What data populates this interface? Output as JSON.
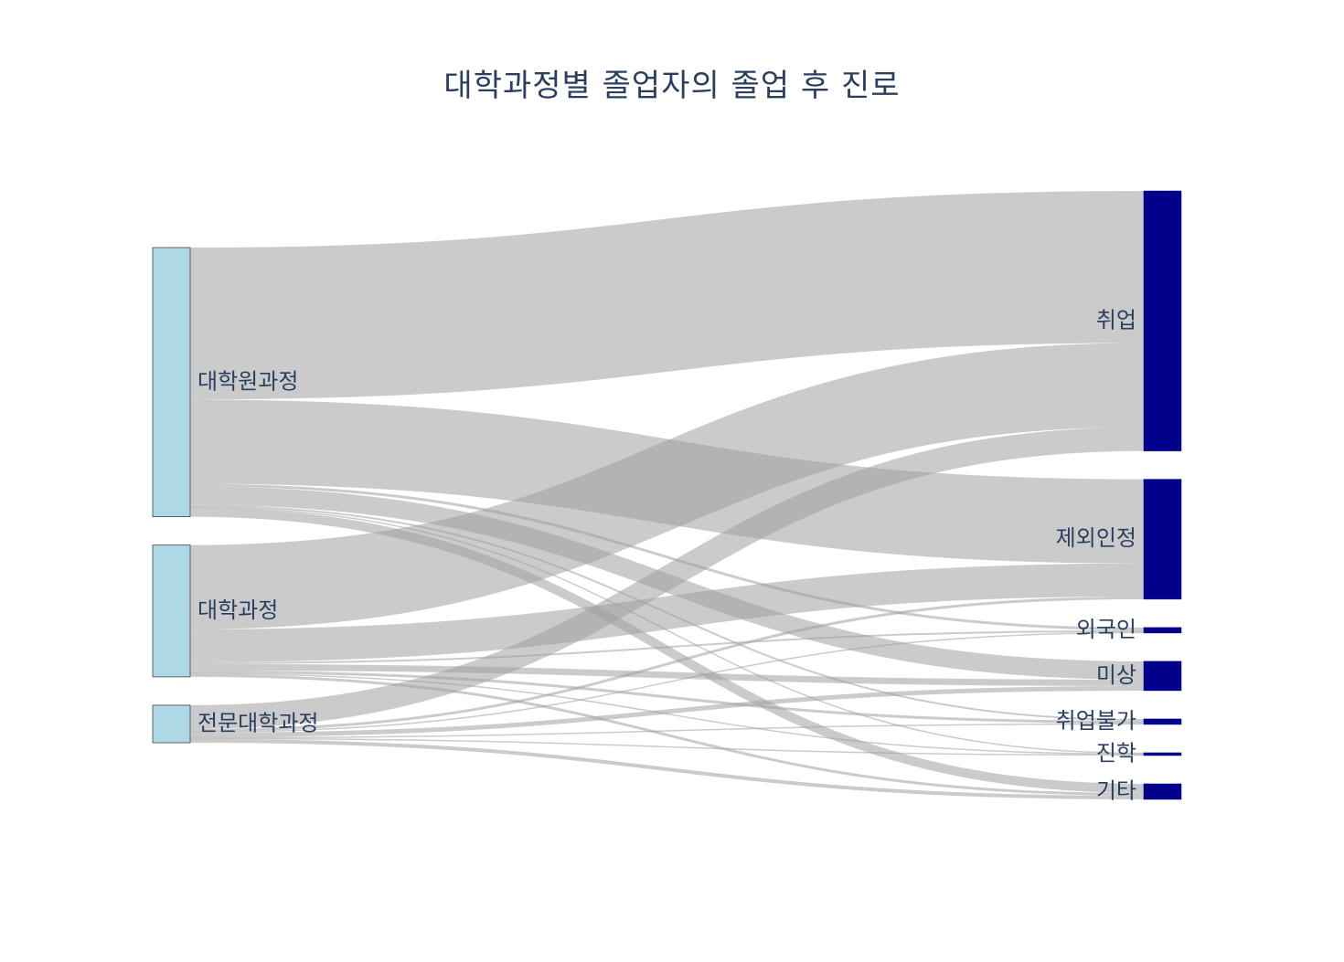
{
  "chart_data": {
    "type": "sankey",
    "title": "대학과정별 졸업자의 졸업 후 진로",
    "nodes": [
      {
        "name": "대학원과정",
        "side": "source",
        "color": "#add8e6"
      },
      {
        "name": "대학과정",
        "side": "source",
        "color": "#add8e6"
      },
      {
        "name": "전문대학과정",
        "side": "source",
        "color": "#add8e6"
      },
      {
        "name": "취업",
        "side": "target",
        "color": "#00008b"
      },
      {
        "name": "제외인정",
        "side": "target",
        "color": "#00008b"
      },
      {
        "name": "외국인",
        "side": "target",
        "color": "#00008b"
      },
      {
        "name": "미상",
        "side": "target",
        "color": "#00008b"
      },
      {
        "name": "취업불가",
        "side": "target",
        "color": "#00008b"
      },
      {
        "name": "진학",
        "side": "target",
        "color": "#00008b"
      },
      {
        "name": "기타",
        "side": "target",
        "color": "#00008b"
      }
    ],
    "links": [
      {
        "source": "대학원과정",
        "target": "취업",
        "value": 166
      },
      {
        "source": "대학원과정",
        "target": "제외인정",
        "value": 92
      },
      {
        "source": "대학원과정",
        "target": "외국인",
        "value": 3
      },
      {
        "source": "대학원과정",
        "target": "미상",
        "value": 20
      },
      {
        "source": "대학원과정",
        "target": "취업불가",
        "value": 2
      },
      {
        "source": "대학원과정",
        "target": "진학",
        "value": 1
      },
      {
        "source": "대학원과정",
        "target": "기타",
        "value": 10
      },
      {
        "source": "대학과정",
        "target": "취업",
        "value": 92
      },
      {
        "source": "대학과정",
        "target": "제외인정",
        "value": 36
      },
      {
        "source": "대학과정",
        "target": "외국인",
        "value": 2
      },
      {
        "source": "대학과정",
        "target": "미상",
        "value": 7
      },
      {
        "source": "대학과정",
        "target": "취업불가",
        "value": 3
      },
      {
        "source": "대학과정",
        "target": "진학",
        "value": 1
      },
      {
        "source": "대학과정",
        "target": "기타",
        "value": 3
      },
      {
        "source": "전문대학과정",
        "target": "취업",
        "value": 26
      },
      {
        "source": "전문대학과정",
        "target": "제외인정",
        "value": 3
      },
      {
        "source": "전문대학과정",
        "target": "외국인",
        "value": 1
      },
      {
        "source": "전문대학과정",
        "target": "미상",
        "value": 5
      },
      {
        "source": "전문대학과정",
        "target": "취업불가",
        "value": 1
      },
      {
        "source": "전문대학과정",
        "target": "진학",
        "value": 1
      },
      {
        "source": "전문대학과정",
        "target": "기타",
        "value": 4
      }
    ],
    "link_color": "#a0a0a0"
  }
}
